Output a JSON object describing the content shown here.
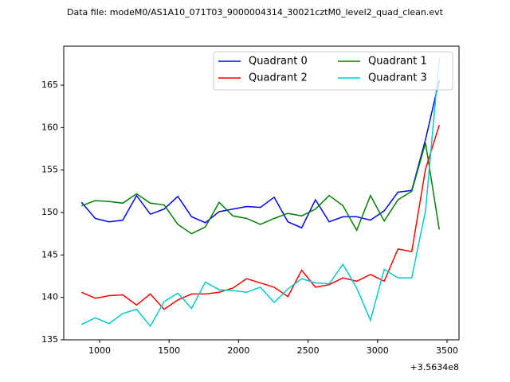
{
  "chart_data": {
    "type": "line",
    "title": "Data file: modeM0/AS1A10_071T03_9000004314_30021cztM0_level2_quad_clean.evt",
    "x_offset_label": "+3.5634e8",
    "x": [
      870,
      969,
      1068,
      1167,
      1266,
      1365,
      1464,
      1563,
      1662,
      1761,
      1860,
      1959,
      2058,
      2157,
      2256,
      2355,
      2454,
      2553,
      2652,
      2751,
      2850,
      2949,
      3048,
      3147,
      3246,
      3345,
      3444
    ],
    "series": [
      {
        "name": "Quadrant 0",
        "color": "#0000ff",
        "values": [
          151.2,
          149.3,
          148.9,
          149.1,
          152.0,
          149.8,
          150.4,
          151.9,
          149.5,
          148.8,
          150.1,
          150.4,
          150.7,
          150.6,
          151.8,
          148.9,
          148.2,
          151.5,
          148.9,
          149.5,
          149.5,
          149.1,
          150.2,
          152.4,
          152.6,
          158.6,
          165.6
        ]
      },
      {
        "name": "Quadrant 1",
        "color": "#008000",
        "values": [
          150.8,
          151.4,
          151.3,
          151.1,
          152.2,
          151.1,
          150.9,
          148.6,
          147.5,
          148.3,
          151.2,
          149.6,
          149.3,
          148.6,
          149.3,
          149.9,
          149.6,
          150.4,
          152.0,
          150.8,
          147.9,
          152.0,
          149.0,
          151.5,
          152.5,
          158.2,
          148.0
        ]
      },
      {
        "name": "Quadrant 2",
        "color": "#ff0000",
        "values": [
          140.6,
          139.9,
          140.2,
          140.3,
          139.1,
          140.4,
          138.6,
          139.7,
          140.4,
          140.4,
          140.6,
          141.1,
          142.2,
          141.7,
          141.2,
          140.1,
          143.2,
          141.2,
          141.5,
          142.3,
          141.9,
          142.7,
          141.9,
          145.7,
          145.4,
          155.1,
          160.3
        ]
      },
      {
        "name": "Quadrant 3",
        "color": "#00cccc",
        "values": [
          136.8,
          137.6,
          136.9,
          138.1,
          138.6,
          136.6,
          139.5,
          140.5,
          138.7,
          141.8,
          140.9,
          140.8,
          140.6,
          141.2,
          139.4,
          141.0,
          142.2,
          141.7,
          141.6,
          143.9,
          141.1,
          137.3,
          143.3,
          142.3,
          142.3,
          150.2,
          168.2
        ]
      }
    ],
    "xlim": [
      742,
      3586
    ],
    "xticks": [
      1000,
      1500,
      2000,
      2500,
      3000,
      3500
    ],
    "ylim": [
      135,
      169.6
    ],
    "yticks": [
      135,
      140,
      145,
      150,
      155,
      160,
      165
    ],
    "legend": "upper right",
    "legend_columns": 2
  }
}
